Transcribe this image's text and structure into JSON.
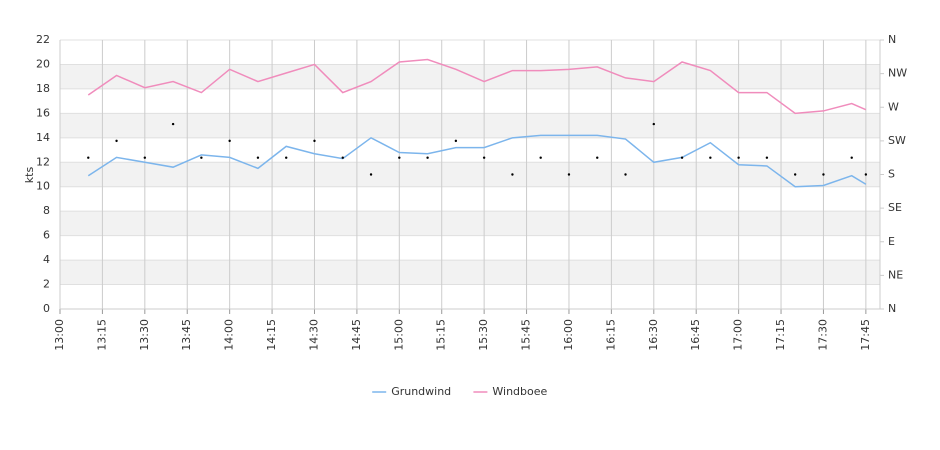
{
  "chart_data": {
    "type": "line",
    "y_axis_label": "kts",
    "x": [
      "13:10",
      "13:20",
      "13:30",
      "13:40",
      "13:50",
      "14:00",
      "14:10",
      "14:20",
      "14:30",
      "14:40",
      "14:50",
      "15:00",
      "15:10",
      "15:20",
      "15:30",
      "15:40",
      "15:50",
      "16:00",
      "16:10",
      "16:20",
      "16:30",
      "16:40",
      "16:50",
      "17:00",
      "17:10",
      "17:20",
      "17:30",
      "17:40",
      "17:45"
    ],
    "series": [
      {
        "name": "Grundwind",
        "color": "#7cb5ec",
        "values": [
          10.9,
          12.4,
          12.0,
          11.6,
          12.6,
          12.4,
          11.5,
          13.3,
          12.7,
          12.3,
          14.0,
          12.8,
          12.7,
          13.2,
          13.2,
          14.0,
          14.2,
          14.2,
          14.2,
          13.9,
          12.0,
          12.4,
          13.6,
          11.8,
          11.7,
          10.0,
          10.1,
          10.9,
          10.2
        ]
      },
      {
        "name": "Windboee",
        "color": "#f08cbc",
        "values": [
          17.5,
          19.1,
          18.1,
          18.6,
          17.7,
          19.6,
          18.6,
          19.3,
          20.0,
          17.7,
          18.6,
          20.2,
          20.4,
          19.6,
          18.6,
          19.5,
          19.5,
          19.6,
          19.8,
          18.9,
          18.6,
          20.2,
          19.5,
          17.7,
          17.7,
          16.0,
          16.2,
          16.8,
          16.3
        ]
      }
    ],
    "direction": {
      "axis": "y2",
      "color": "#000000",
      "values": [
        202.5,
        225,
        202.5,
        247.5,
        202.5,
        225,
        202.5,
        202.5,
        225,
        202.5,
        180,
        202.5,
        202.5,
        225,
        202.5,
        180,
        202.5,
        180,
        202.5,
        180,
        247.5,
        202.5,
        202.5,
        202.5,
        202.5,
        180,
        180,
        202.5,
        180
      ]
    },
    "xlim": [
      "13:00",
      "17:50"
    ],
    "xticks": [
      "13:00",
      "13:15",
      "13:30",
      "13:45",
      "14:00",
      "14:15",
      "14:30",
      "14:45",
      "15:00",
      "15:15",
      "15:30",
      "15:45",
      "16:00",
      "16:15",
      "16:30",
      "16:45",
      "17:00",
      "17:15",
      "17:30",
      "17:45"
    ],
    "ylim": [
      0,
      22
    ],
    "yticks": [
      0,
      2,
      4,
      6,
      8,
      10,
      12,
      14,
      16,
      18,
      20,
      22
    ],
    "y2lim": [
      0,
      360
    ],
    "y2ticks": [
      {
        "value": 0,
        "label": "N"
      },
      {
        "value": 45,
        "label": "NE"
      },
      {
        "value": 90,
        "label": "E"
      },
      {
        "value": 135,
        "label": "SE"
      },
      {
        "value": 180,
        "label": "S"
      },
      {
        "value": 225,
        "label": "SW"
      },
      {
        "value": 270,
        "label": "W"
      },
      {
        "value": 315,
        "label": "NW"
      },
      {
        "value": 360,
        "label": "N"
      }
    ],
    "grid": true,
    "legend": "bottom"
  }
}
